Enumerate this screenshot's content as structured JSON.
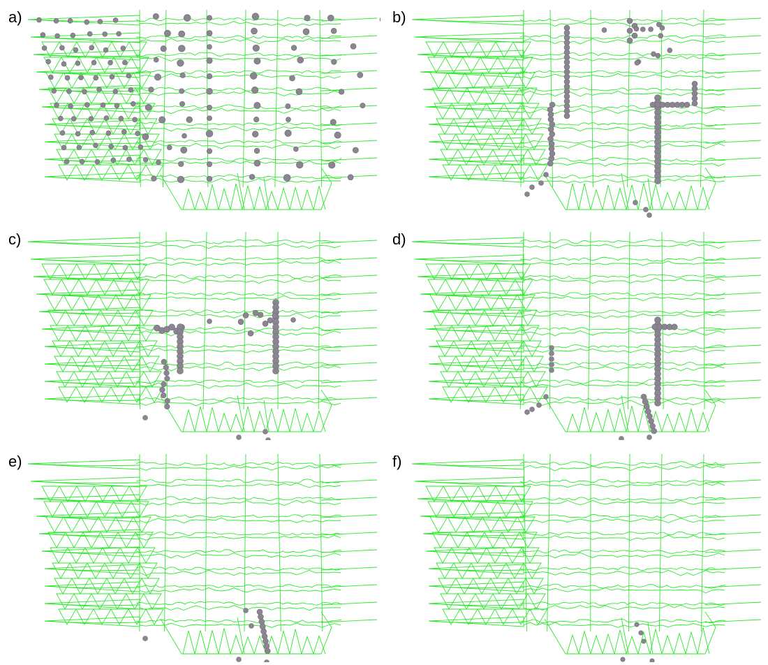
{
  "figure": {
    "panels": [
      {
        "label": "a)",
        "particles": "full"
      },
      {
        "label": "b)",
        "particles": "stage-b"
      },
      {
        "label": "c)",
        "particles": "stage-c"
      },
      {
        "label": "d)",
        "particles": "stage-d"
      },
      {
        "label": "e)",
        "particles": "stage-e"
      },
      {
        "label": "f)",
        "particles": "stage-f"
      }
    ],
    "colors": {
      "mesh": "#22e622",
      "particle": "#8a8590",
      "background": "#ffffff"
    }
  }
}
